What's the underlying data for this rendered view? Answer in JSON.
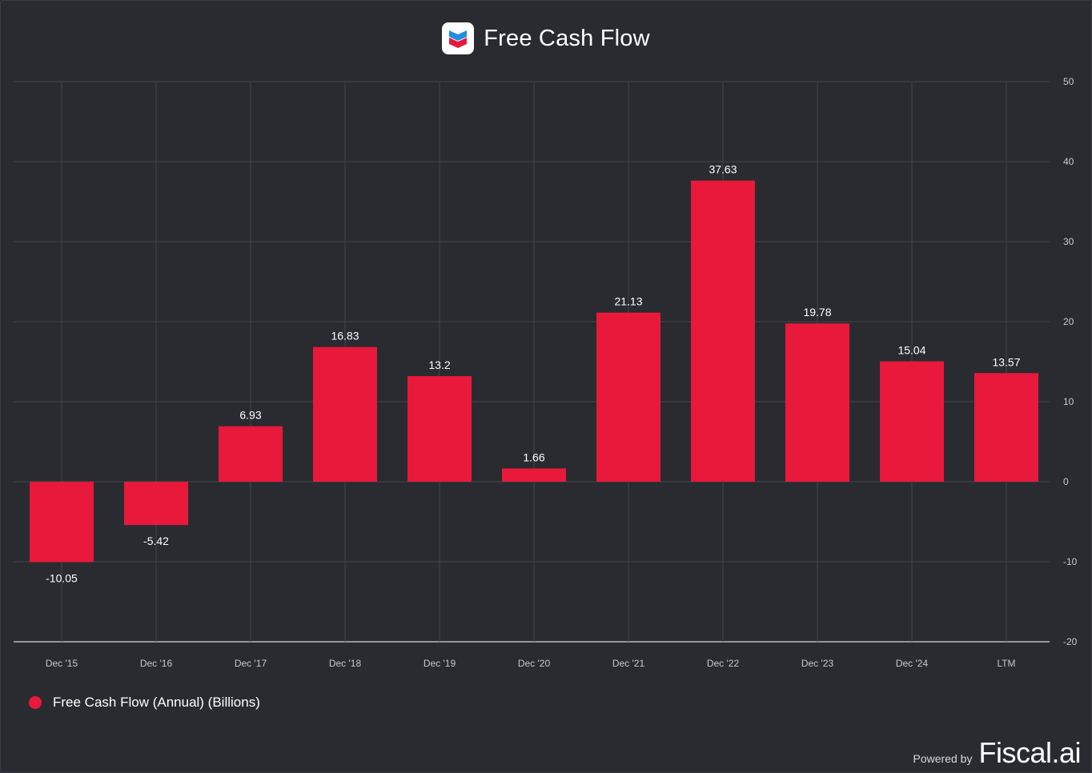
{
  "header": {
    "title": "Free Cash Flow",
    "logo_icon": "chevron-logo-icon"
  },
  "colors": {
    "bar": "#e8193a",
    "background": "#2a2b31",
    "grid": "#44454c",
    "axis_text": "#c8c8cc"
  },
  "chart_data": {
    "type": "bar",
    "title": "Free Cash Flow",
    "categories": [
      "Dec '15",
      "Dec '16",
      "Dec '17",
      "Dec '18",
      "Dec '19",
      "Dec '20",
      "Dec '21",
      "Dec '22",
      "Dec '23",
      "Dec '24",
      "LTM"
    ],
    "series": [
      {
        "name": "Free Cash Flow (Annual) (Billions)",
        "values": [
          -10.05,
          -5.42,
          6.93,
          16.83,
          13.2,
          1.66,
          21.13,
          37.63,
          19.78,
          15.04,
          13.57
        ],
        "labels": [
          "-10.05",
          "-5.42",
          "6.93",
          "16.83",
          "13.2",
          "1.66",
          "21.13",
          "37.63",
          "19.78",
          "15.04",
          "13.57"
        ]
      }
    ],
    "ylim": [
      -20,
      50
    ],
    "yticks": [
      -20,
      -10,
      0,
      10,
      20,
      30,
      40,
      50
    ],
    "y_axis_side": "right",
    "grid": true,
    "legend_position": "bottom-left",
    "xlabel": "",
    "ylabel": ""
  },
  "legend": {
    "label": "Free Cash Flow (Annual) (Billions)"
  },
  "footer": {
    "powered_by": "Powered by",
    "brand": "Fiscal.ai"
  }
}
